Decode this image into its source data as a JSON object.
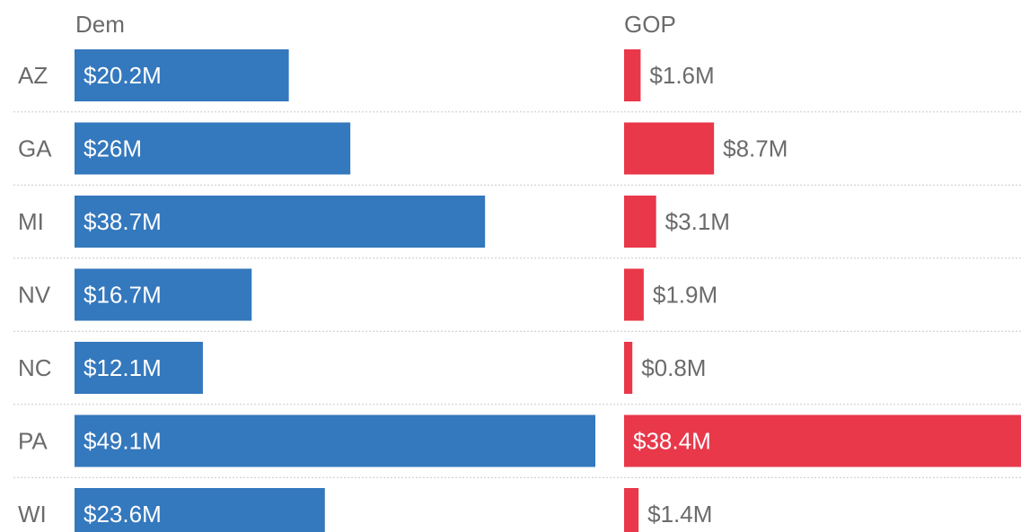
{
  "chart_data": {
    "type": "bar",
    "categories": [
      "AZ",
      "GA",
      "MI",
      "NV",
      "NC",
      "PA",
      "WI"
    ],
    "series": [
      {
        "name": "Dem",
        "values": [
          20.2,
          26,
          38.7,
          16.7,
          12.1,
          49.1,
          23.6
        ],
        "labels": [
          "$20.2M",
          "$26M",
          "$38.7M",
          "$16.7M",
          "$12.1M",
          "$49.1M",
          "$23.6M"
        ],
        "color": "#3478bd"
      },
      {
        "name": "GOP",
        "values": [
          1.6,
          8.7,
          3.1,
          1.9,
          0.8,
          38.4,
          1.4
        ],
        "labels": [
          "$1.6M",
          "$8.7M",
          "$3.1M",
          "$1.9M",
          "$0.8M",
          "$38.4M",
          "$1.4M"
        ],
        "color": "#e8384a"
      }
    ],
    "orientation": "horizontal",
    "grid": false,
    "legend": "none"
  },
  "colors": {
    "dem": "#3478bd",
    "gop": "#e8384a",
    "label_inside": "#ffffff",
    "label_outside": "#6b6b6b"
  }
}
